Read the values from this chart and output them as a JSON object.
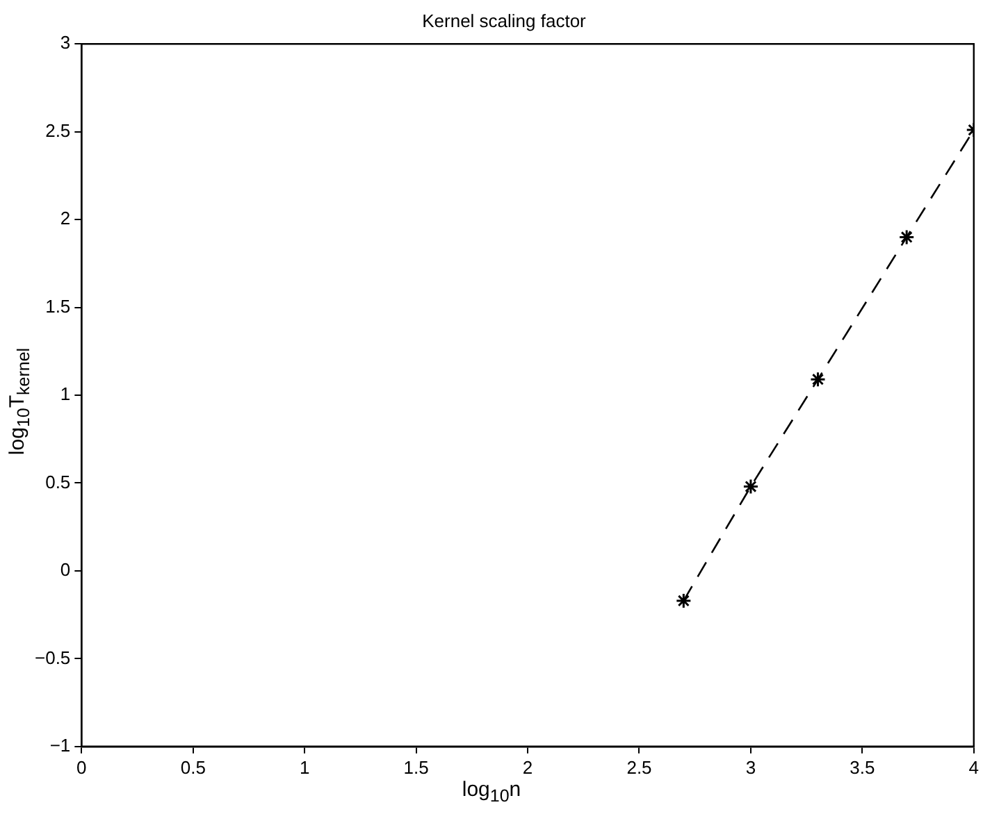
{
  "chart_data": {
    "type": "line",
    "title": "Kernel scaling factor",
    "xlabel": "log$_{10}$n",
    "ylabel": "log$_{10}$T$_{kernel}$",
    "x": [
      2.699,
      3,
      3.301,
      3.699,
      4
    ],
    "series": [
      {
        "color": "#000000",
        "values": [
          -0.17,
          0.48,
          1.09,
          1.9,
          2.51
        ]
      }
    ],
    "xlim": [
      0,
      4
    ],
    "xticks": [
      0,
      0.5,
      1,
      1.5,
      2,
      2.5,
      3,
      3.5,
      4
    ],
    "ylim": [
      -1,
      3
    ],
    "yticks": [
      -1,
      -0.5,
      0,
      0.5,
      1,
      1.5,
      2,
      2.5,
      3
    ],
    "grid": false,
    "legend": false,
    "marker": "cross",
    "line_style": "dashed"
  }
}
